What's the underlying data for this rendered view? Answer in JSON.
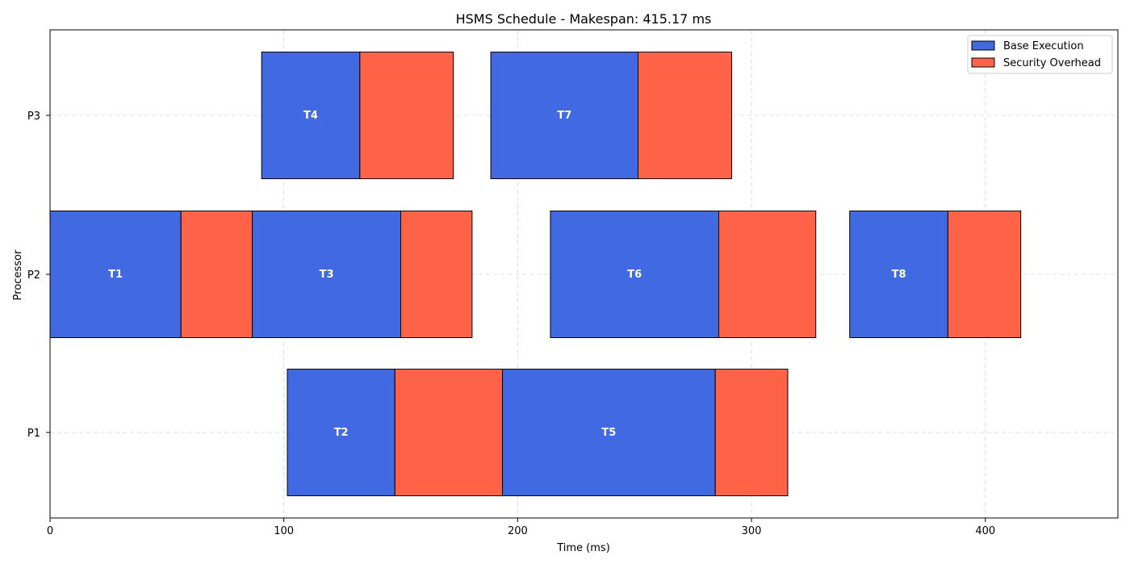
{
  "chart_data": {
    "type": "gantt",
    "title": "HSMS Schedule - Makespan: 415.17 ms",
    "xlabel": "Time (ms)",
    "ylabel": "Processor",
    "xlim": [
      0,
      456.7
    ],
    "xticks": [
      0,
      100,
      200,
      300,
      400
    ],
    "grid": true,
    "legend_position": "top-right",
    "processors": [
      "P1",
      "P2",
      "P3"
    ],
    "legend": [
      {
        "label": "Base Execution",
        "color": "#4169E1"
      },
      {
        "label": "Security Overhead",
        "color": "#FF6347"
      }
    ],
    "tasks": [
      {
        "name": "T1",
        "processor": "P2",
        "start": 0,
        "base": 56,
        "overhead": 30.5
      },
      {
        "name": "T3",
        "processor": "P2",
        "start": 86.5,
        "base": 63.5,
        "overhead": 30.5
      },
      {
        "name": "T6",
        "processor": "P2",
        "start": 214,
        "base": 72,
        "overhead": 41.5
      },
      {
        "name": "T8",
        "processor": "P2",
        "start": 342,
        "base": 42,
        "overhead": 31.17
      },
      {
        "name": "T4",
        "processor": "P3",
        "start": 90.5,
        "base": 42,
        "overhead": 40
      },
      {
        "name": "T7",
        "processor": "P3",
        "start": 188.5,
        "base": 63,
        "overhead": 40
      },
      {
        "name": "T2",
        "processor": "P1",
        "start": 101.5,
        "base": 46,
        "overhead": 46
      },
      {
        "name": "T5",
        "processor": "P1",
        "start": 193.5,
        "base": 91,
        "overhead": 31
      }
    ]
  }
}
